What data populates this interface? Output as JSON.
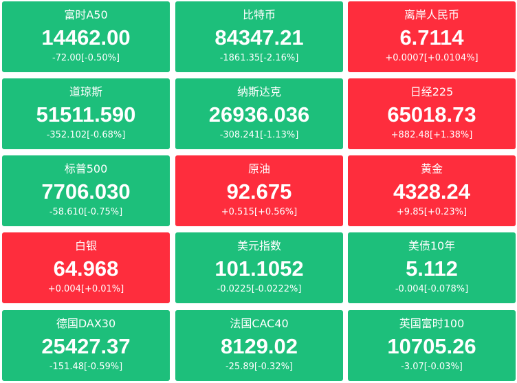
{
  "tiles": [
    {
      "name": "富时A50",
      "price": "14462.00",
      "change": "-72.00[-0.50%]",
      "color": "#1dbf7b"
    },
    {
      "name": "比特币",
      "price": "84347.21",
      "change": "-1861.35[-2.16%]",
      "color": "#1dbf7b"
    },
    {
      "name": "离岸人民币",
      "price": "6.7114",
      "change": "+0.0007[+0.0104%]",
      "color": "#fe2d3d"
    },
    {
      "name": "道琼斯",
      "price": "51511.590",
      "change": "-352.102[-0.68%]",
      "color": "#1dbf7b"
    },
    {
      "name": "纳斯达克",
      "price": "26936.036",
      "change": "-308.241[-1.13%]",
      "color": "#1dbf7b"
    },
    {
      "name": "日经225",
      "price": "65018.73",
      "change": "+882.48[+1.38%]",
      "color": "#fe2d3d"
    },
    {
      "name": "标普500",
      "price": "7706.030",
      "change": "-58.610[-0.75%]",
      "color": "#1dbf7b"
    },
    {
      "name": "原油",
      "price": "92.675",
      "change": "+0.515[+0.56%]",
      "color": "#fe2d3d"
    },
    {
      "name": "黄金",
      "price": "4328.24",
      "change": "+9.85[+0.23%]",
      "color": "#fe2d3d"
    },
    {
      "name": "白银",
      "price": "64.968",
      "change": "+0.004[+0.01%]",
      "color": "#fe2d3d"
    },
    {
      "name": "美元指数",
      "price": "101.1052",
      "change": "-0.0225[-0.0222%]",
      "color": "#1dbf7b"
    },
    {
      "name": "美债10年",
      "price": "5.112",
      "change": "-0.004[-0.078%]",
      "color": "#1dbf7b"
    },
    {
      "name": "德国DAX30",
      "price": "25427.37",
      "change": "-151.48[-0.59%]",
      "color": "#1dbf7b"
    },
    {
      "name": "法国CAC40",
      "price": "8129.02",
      "change": "-25.89[-0.32%]",
      "color": "#1dbf7b"
    },
    {
      "name": "英国富时100",
      "price": "10705.26",
      "change": "-3.07[-0.03%]",
      "color": "#1dbf7b"
    }
  ]
}
